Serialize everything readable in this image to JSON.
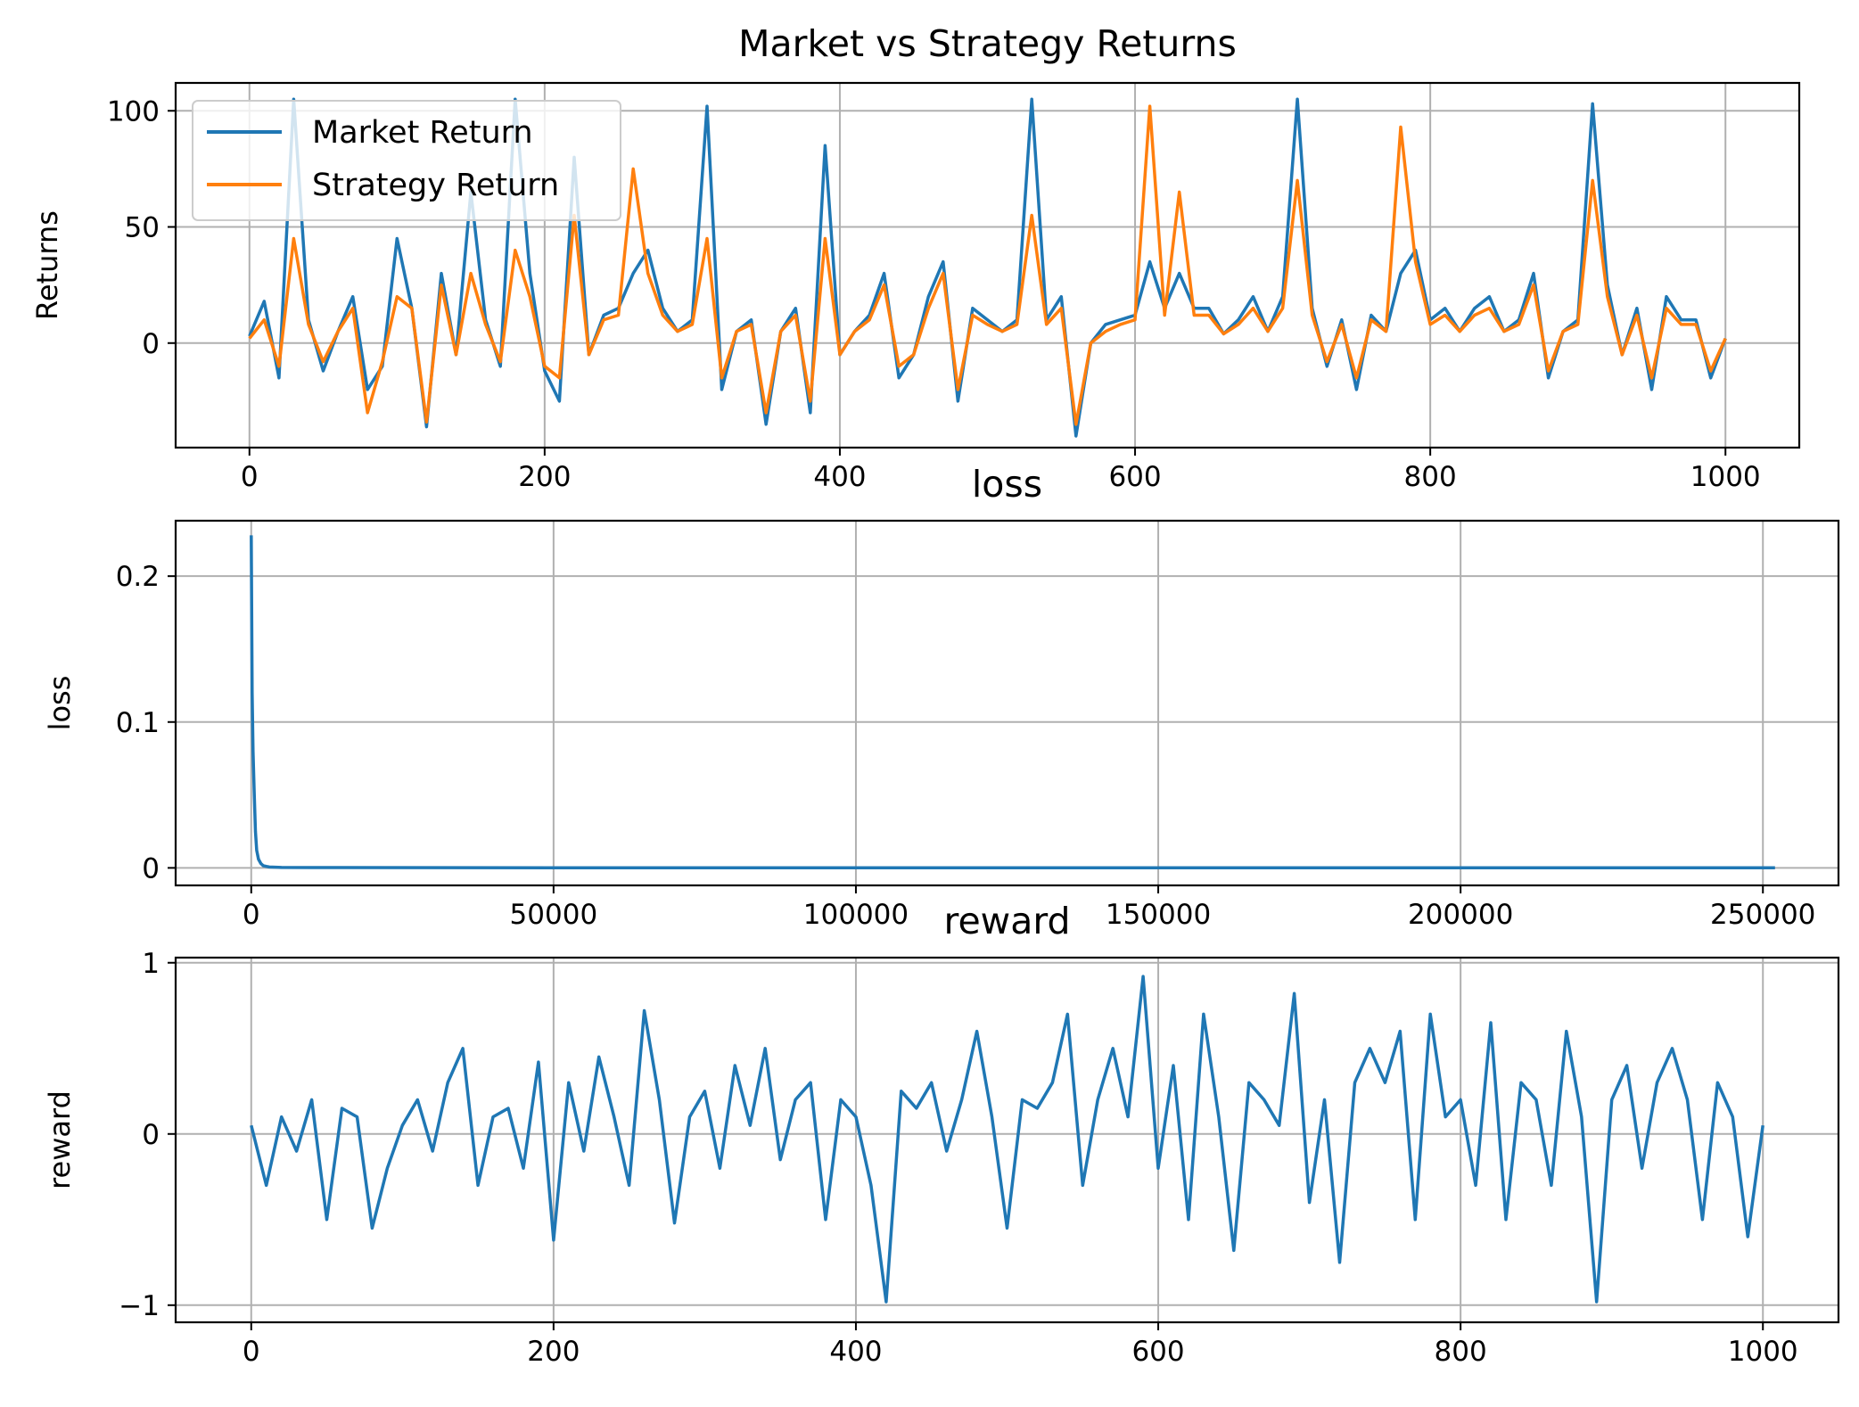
{
  "chart_data": [
    {
      "type": "line",
      "title": "Market vs Strategy Returns",
      "xlabel": "",
      "ylabel": "Returns",
      "xlim": [
        -50,
        1050
      ],
      "ylim": [
        -45,
        112
      ],
      "xticks": [
        0,
        200,
        400,
        600,
        800,
        1000
      ],
      "yticks": [
        0,
        50,
        100
      ],
      "grid": true,
      "legend_position": "top-left",
      "colors": {
        "Market Return": "#1f77b4",
        "Strategy Return": "#ff7f0e"
      },
      "series": [
        {
          "name": "Market Return",
          "x_start": 0,
          "x_step": 10,
          "values": [
            3,
            18,
            -15,
            105,
            10,
            -12,
            5,
            20,
            -20,
            -10,
            45,
            15,
            -36,
            30,
            -5,
            65,
            10,
            -10,
            105,
            30,
            -12,
            -25,
            80,
            -5,
            12,
            15,
            30,
            40,
            15,
            5,
            10,
            102,
            -20,
            5,
            10,
            -35,
            5,
            15,
            -30,
            85,
            -5,
            5,
            12,
            30,
            -15,
            -5,
            20,
            35,
            -25,
            15,
            10,
            5,
            10,
            105,
            10,
            20,
            -40,
            0,
            8,
            10,
            12,
            35,
            15,
            30,
            15,
            15,
            4,
            10,
            20,
            5,
            20,
            105,
            15,
            -10,
            10,
            -20,
            12,
            5,
            30,
            40,
            10,
            15,
            5,
            15,
            20,
            5,
            10,
            30,
            -15,
            5,
            10,
            103,
            25,
            -5,
            15,
            -20,
            20,
            10,
            10,
            -15,
            2
          ]
        },
        {
          "name": "Strategy Return",
          "x_start": 0,
          "x_step": 10,
          "values": [
            2,
            10,
            -10,
            45,
            8,
            -8,
            5,
            15,
            -30,
            -8,
            20,
            15,
            -34,
            25,
            -5,
            30,
            8,
            -8,
            40,
            20,
            -10,
            -15,
            55,
            -5,
            10,
            12,
            75,
            30,
            12,
            5,
            8,
            45,
            -15,
            5,
            8,
            -30,
            5,
            12,
            -25,
            45,
            -5,
            5,
            10,
            25,
            -10,
            -5,
            15,
            30,
            -20,
            12,
            8,
            5,
            8,
            55,
            8,
            15,
            -35,
            0,
            5,
            8,
            10,
            102,
            12,
            65,
            12,
            12,
            4,
            8,
            15,
            5,
            15,
            70,
            12,
            -8,
            8,
            -15,
            10,
            5,
            93,
            35,
            8,
            12,
            5,
            12,
            15,
            5,
            8,
            25,
            -12,
            5,
            8,
            70,
            20,
            -5,
            12,
            -15,
            15,
            8,
            8,
            -12,
            2
          ]
        }
      ]
    },
    {
      "type": "line",
      "title": "loss",
      "xlabel": "",
      "ylabel": "loss",
      "xlim": [
        -12500,
        262500
      ],
      "ylim": [
        -0.012,
        0.238
      ],
      "xticks": [
        0,
        50000,
        100000,
        150000,
        200000,
        250000
      ],
      "yticks": [
        0.0,
        0.1,
        0.2
      ],
      "grid": true,
      "colors": {
        "loss": "#1f77b4"
      },
      "series": [
        {
          "x": [
            0,
            150,
            300,
            500,
            700,
            900,
            1200,
            1600,
            2000,
            2500,
            3000,
            5000,
            10000,
            50000,
            100000,
            150000,
            200000,
            252000
          ],
          "values": [
            0.228,
            0.12,
            0.08,
            0.05,
            0.025,
            0.012,
            0.006,
            0.003,
            0.0015,
            0.001,
            0.0006,
            0.0003,
            0.0002,
            0.0001,
            0.0001,
            0.0001,
            0.0001,
            0.0001
          ]
        }
      ]
    },
    {
      "type": "line",
      "title": "reward",
      "xlabel": "",
      "ylabel": "reward",
      "xlim": [
        -50,
        1050
      ],
      "ylim": [
        -1.1,
        1.03
      ],
      "xticks": [
        0,
        200,
        400,
        600,
        800,
        1000
      ],
      "yticks": [
        -1,
        0,
        1
      ],
      "grid": true,
      "colors": {
        "reward": "#1f77b4"
      },
      "series": [
        {
          "x_start": 0,
          "x_step": 10,
          "values": [
            0.05,
            -0.3,
            0.1,
            -0.1,
            0.2,
            -0.5,
            0.15,
            0.1,
            -0.55,
            -0.2,
            0.05,
            0.2,
            -0.1,
            0.3,
            0.5,
            -0.3,
            0.1,
            0.15,
            -0.2,
            0.42,
            -0.62,
            0.3,
            -0.1,
            0.45,
            0.1,
            -0.3,
            0.72,
            0.2,
            -0.52,
            0.1,
            0.25,
            -0.2,
            0.4,
            0.05,
            0.5,
            -0.15,
            0.2,
            0.3,
            -0.5,
            0.2,
            0.1,
            -0.3,
            -0.98,
            0.25,
            0.15,
            0.3,
            -0.1,
            0.2,
            0.6,
            0.1,
            -0.55,
            0.2,
            0.15,
            0.3,
            0.7,
            -0.3,
            0.2,
            0.5,
            0.1,
            0.92,
            -0.2,
            0.4,
            -0.5,
            0.7,
            0.1,
            -0.68,
            0.3,
            0.2,
            0.05,
            0.82,
            -0.4,
            0.2,
            -0.75,
            0.3,
            0.5,
            0.3,
            0.6,
            -0.5,
            0.7,
            0.1,
            0.2,
            -0.3,
            0.65,
            -0.5,
            0.3,
            0.2,
            -0.3,
            0.6,
            0.1,
            -0.98,
            0.2,
            0.4,
            -0.2,
            0.3,
            0.5,
            0.2,
            -0.5,
            0.3,
            0.1,
            -0.6,
            0.05
          ]
        }
      ]
    }
  ]
}
